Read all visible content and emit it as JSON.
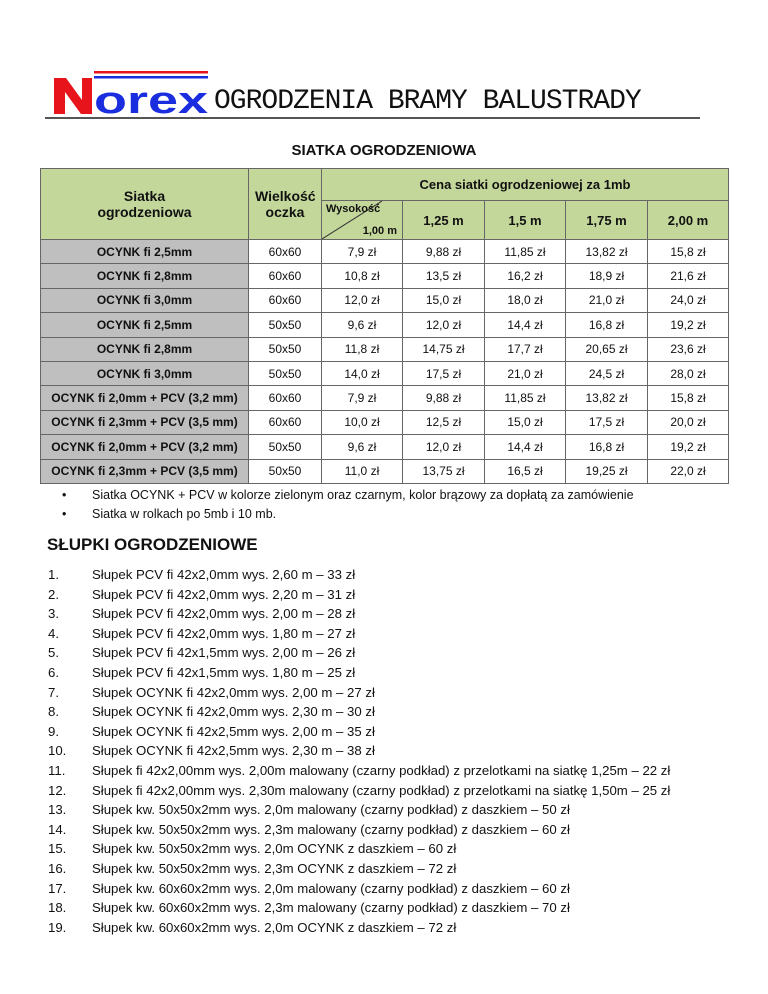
{
  "header": {
    "logo_text": "Norex",
    "title": "OGRODZENIA BRAMY BALUSTRADY",
    "colors": {
      "logo_red": "#e8141c",
      "logo_blue": "#1a2ee0"
    }
  },
  "section1": {
    "title": "SIATKA OGRODZENIOWA"
  },
  "table": {
    "col_name": "Siatka ogrodzeniowa",
    "col_mesh": "Wielkość oczka",
    "price_group": "Cena siatki ogrodzeniowej za 1mb",
    "height_label": "Wysokość",
    "heights": [
      "1,00 m",
      "1,25 m",
      "1,5 m",
      "1,75 m",
      "2,00 m"
    ],
    "rows": [
      {
        "name": "OCYNK fi 2,5mm",
        "mesh": "60x60",
        "prices": [
          "7,9 zł",
          "9,88 zł",
          "11,85 zł",
          "13,82 zł",
          "15,8 zł"
        ]
      },
      {
        "name": "OCYNK fi 2,8mm",
        "mesh": "60x60",
        "prices": [
          "10,8 zł",
          "13,5 zł",
          "16,2 zł",
          "18,9 zł",
          "21,6 zł"
        ]
      },
      {
        "name": "OCYNK fi 3,0mm",
        "mesh": "60x60",
        "prices": [
          "12,0 zł",
          "15,0 zł",
          "18,0 zł",
          "21,0 zł",
          "24,0 zł"
        ]
      },
      {
        "name": "OCYNK fi 2,5mm",
        "mesh": "50x50",
        "prices": [
          "9,6 zł",
          "12,0 zł",
          "14,4 zł",
          "16,8 zł",
          "19,2 zł"
        ]
      },
      {
        "name": "OCYNK fi 2,8mm",
        "mesh": "50x50",
        "prices": [
          "11,8 zł",
          "14,75 zł",
          "17,7 zł",
          "20,65 zł",
          "23,6 zł"
        ]
      },
      {
        "name": "OCYNK fi 3,0mm",
        "mesh": "50x50",
        "prices": [
          "14,0 zł",
          "17,5 zł",
          "21,0 zł",
          "24,5 zł",
          "28,0 zł"
        ]
      },
      {
        "name": "OCYNK fi 2,0mm + PCV (3,2 mm)",
        "mesh": "60x60",
        "prices": [
          "7,9 zł",
          "9,88 zł",
          "11,85 zł",
          "13,82 zł",
          "15,8 zł"
        ]
      },
      {
        "name": "OCYNK fi 2,3mm + PCV (3,5 mm)",
        "mesh": "60x60",
        "prices": [
          "10,0 zł",
          "12,5 zł",
          "15,0 zł",
          "17,5 zł",
          "20,0 zł"
        ]
      },
      {
        "name": "OCYNK fi 2,0mm + PCV (3,2 mm)",
        "mesh": "50x50",
        "prices": [
          "9,6 zł",
          "12,0 zł",
          "14,4 zł",
          "16,8 zł",
          "19,2 zł"
        ]
      },
      {
        "name": "OCYNK fi 2,3mm + PCV (3,5 mm)",
        "mesh": "50x50",
        "prices": [
          "11,0 zł",
          "13,75 zł",
          "16,5 zł",
          "19,25 zł",
          "22,0 zł"
        ]
      }
    ]
  },
  "notes": [
    "Siatka OCYNK + PCV w kolorze zielonym oraz czarnym, kolor brązowy za dopłatą za zamówienie",
    "Siatka w rolkach po 5mb i 10 mb."
  ],
  "section2": {
    "title": "SŁUPKI OGRODZENIOWE",
    "items": [
      "Słupek PCV fi 42x2,0mm wys. 2,60 m – 33 zł",
      "Słupek PCV fi 42x2,0mm wys. 2,20 m – 31 zł",
      "Słupek PCV fi 42x2,0mm wys. 2,00 m – 28 zł",
      "Słupek PCV fi 42x2,0mm wys. 1,80 m – 27 zł",
      "Słupek PCV fi 42x1,5mm wys. 2,00 m – 26 zł",
      "Słupek PCV fi 42x1,5mm wys. 1,80 m – 25 zł",
      "Słupek OCYNK fi 42x2,0mm wys. 2,00 m – 27 zł",
      "Słupek OCYNK fi 42x2,0mm wys. 2,30 m – 30 zł",
      "Słupek OCYNK fi 42x2,5mm wys. 2,00 m – 35 zł",
      "Słupek OCYNK fi 42x2,5mm wys. 2,30 m – 38 zł",
      "Słupek fi 42x2,00mm wys. 2,00m malowany (czarny podkład) z przelotkami na siatkę 1,25m – 22 zł",
      "Słupek fi 42x2,00mm wys. 2,30m malowany (czarny podkład) z przelotkami na siatkę 1,50m – 25 zł",
      "Słupek kw. 50x50x2mm wys. 2,0m malowany (czarny podkład) z daszkiem – 50 zł",
      "Słupek kw. 50x50x2mm wys. 2,3m malowany (czarny podkład) z daszkiem – 60 zł",
      "Słupek kw. 50x50x2mm wys. 2,0m OCYNK z daszkiem – 60 zł",
      "Słupek kw. 50x50x2mm wys. 2,3m OCYNK z daszkiem – 72 zł",
      "Słupek kw. 60x60x2mm wys. 2,0m malowany (czarny podkład) z daszkiem – 60 zł",
      "Słupek kw. 60x60x2mm wys. 2,3m malowany (czarny podkład) z daszkiem – 70 zł",
      "Słupek kw. 60x60x2mm wys. 2,0m OCYNK z daszkiem – 72 zł"
    ]
  }
}
